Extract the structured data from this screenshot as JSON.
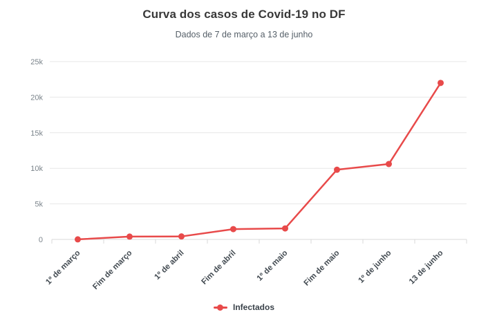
{
  "header": {
    "title": "Curva dos casos de Covid-19 no DF",
    "subtitle": "Dados de 7 de março a 13 de junho"
  },
  "legend": {
    "position": "bottom",
    "items": [
      {
        "label": "Infectados",
        "color": "#e84a4a",
        "marker": "line-dot"
      }
    ]
  },
  "colors": {
    "background": "#ffffff",
    "series": "#e84a4a",
    "gridline": "#e7e7e7",
    "axis_line": "#d9d9d9",
    "y_tick_label": "#7b848b",
    "x_tick_label": "#434b52",
    "title": "#383838",
    "subtitle": "#555f68",
    "legend_label": "#3a424a"
  },
  "chart_data": {
    "type": "line",
    "title": "Curva dos casos de Covid-19 no DF",
    "subtitle": "Dados de 7 de março a 13 de junho",
    "categories": [
      "1º de março",
      "Fim de março",
      "1º de abril",
      "Fim de abril",
      "1º de maio",
      "Fim de maio",
      "1º de junho",
      "13 de junho"
    ],
    "series": [
      {
        "name": "Infectados",
        "color": "#e84a4a",
        "values": [
          10,
          400,
          420,
          1450,
          1550,
          9800,
          10600,
          22000
        ]
      }
    ],
    "xlabel": "",
    "ylabel": "",
    "ylim": [
      0,
      25000
    ],
    "yticks": [
      0,
      5000,
      10000,
      15000,
      20000,
      25000
    ],
    "ytick_labels": [
      "0",
      "5k",
      "10k",
      "15k",
      "20k",
      "25k"
    ],
    "grid": "horizontal-only",
    "x_label_rotation": -45,
    "marker": "circle",
    "legend_position": "bottom"
  }
}
